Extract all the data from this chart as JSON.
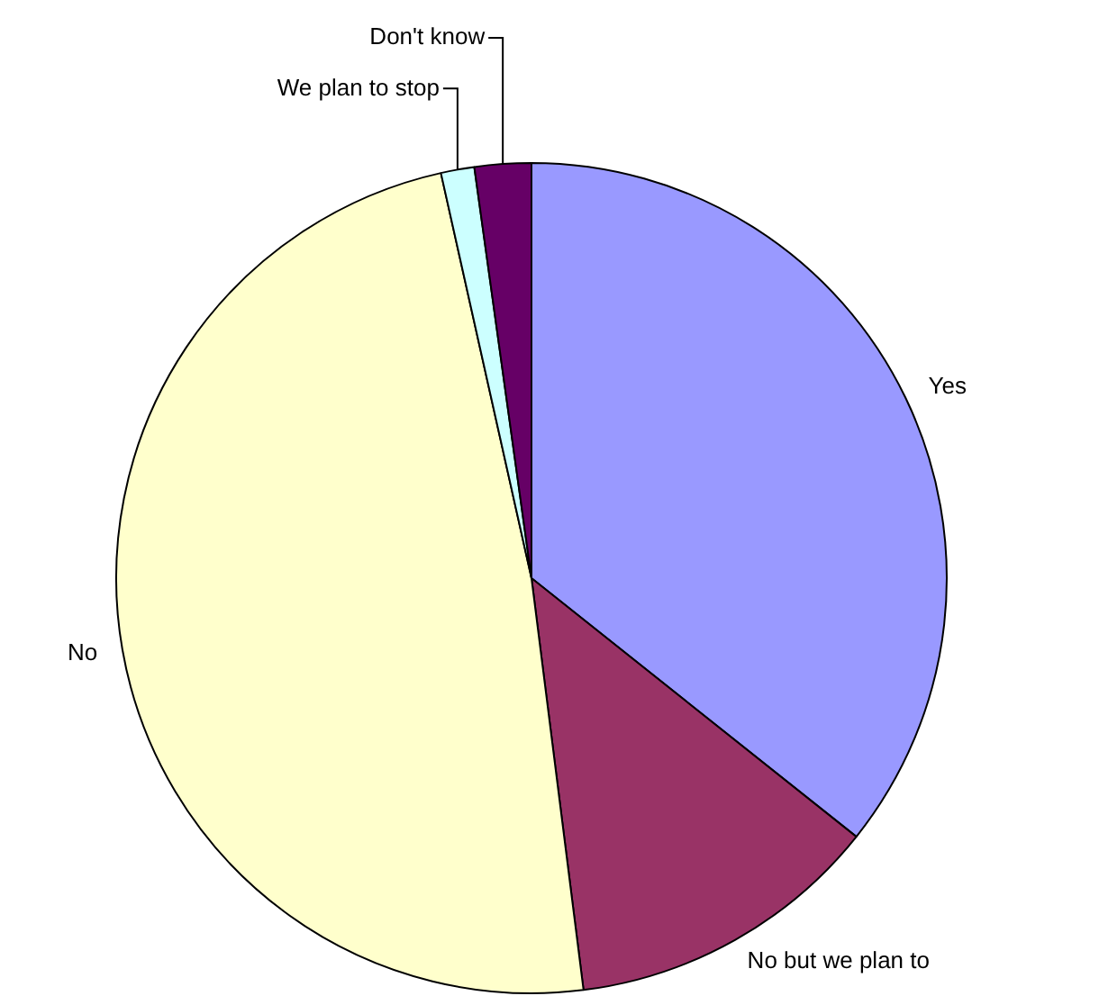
{
  "chart_data": {
    "type": "pie",
    "categories": [
      "Yes",
      "No but we plan to",
      "No",
      "We plan to stop",
      "Don't know"
    ],
    "values": [
      35.7,
      12.3,
      48.5,
      1.3,
      2.2
    ],
    "colors": [
      "#9999ff",
      "#993366",
      "#ffffcc",
      "#ccffff",
      "#660066"
    ],
    "legend": false
  }
}
